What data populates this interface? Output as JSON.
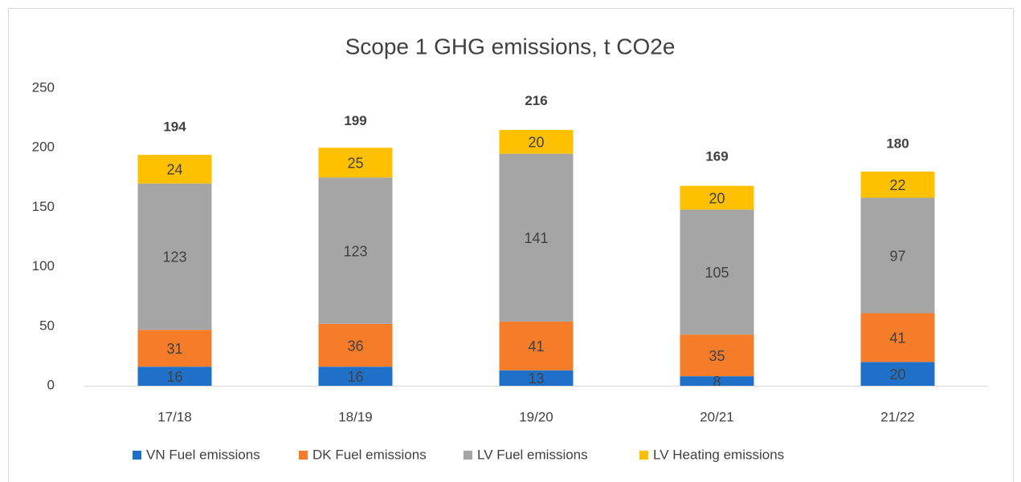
{
  "chart_data": {
    "type": "stacked_bar",
    "title": "Scope 1 GHG emissions, t CO2e",
    "categories": [
      "17/18",
      "18/19",
      "19/20",
      "20/21",
      "21/22"
    ],
    "series": [
      {
        "name": "VN Fuel emissions",
        "color": "#1f70c8",
        "values": [
          16,
          16,
          13,
          8,
          20
        ]
      },
      {
        "name": "DK Fuel emissions",
        "color": "#f57d2a",
        "values": [
          31,
          36,
          41,
          35,
          41
        ]
      },
      {
        "name": "LV Fuel emissions",
        "color": "#a5a5a5",
        "values": [
          123,
          123,
          141,
          105,
          97
        ]
      },
      {
        "name": "LV Heating emissions",
        "color": "#ffc000",
        "values": [
          24,
          25,
          20,
          20,
          22
        ]
      }
    ],
    "totals": [
      194,
      199,
      216,
      169,
      180
    ],
    "ylim": [
      0,
      250
    ],
    "yticks": [
      0,
      50,
      100,
      150,
      200,
      250
    ],
    "grid": false,
    "legend": "bottom"
  }
}
